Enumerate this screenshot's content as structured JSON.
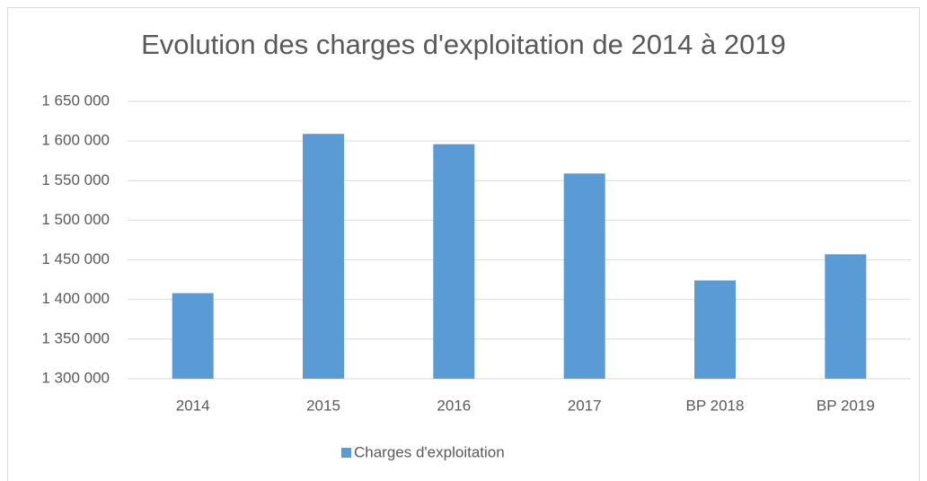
{
  "chart_data": {
    "type": "bar",
    "title": "Evolution des charges d'exploitation de 2014 à 2019",
    "categories": [
      "2014",
      "2015",
      "2016",
      "2017",
      "BP 2018",
      "BP 2019"
    ],
    "series": [
      {
        "name": "Charges d'exploitation",
        "color": "#5b9bd5",
        "values": [
          1408000,
          1609000,
          1596000,
          1559000,
          1424000,
          1457000
        ]
      }
    ],
    "ylim": [
      1300000,
      1650000
    ],
    "yticks": [
      {
        "value": 1300000,
        "label": "1 300 000"
      },
      {
        "value": 1350000,
        "label": "1 350 000"
      },
      {
        "value": 1400000,
        "label": "1 400 000"
      },
      {
        "value": 1450000,
        "label": "1 450 000"
      },
      {
        "value": 1500000,
        "label": "1 500 000"
      },
      {
        "value": 1550000,
        "label": "1 550 000"
      },
      {
        "value": 1600000,
        "label": "1 600 000"
      },
      {
        "value": 1650000,
        "label": "1 650 000"
      }
    ],
    "grid": true,
    "legend": "bottom"
  }
}
